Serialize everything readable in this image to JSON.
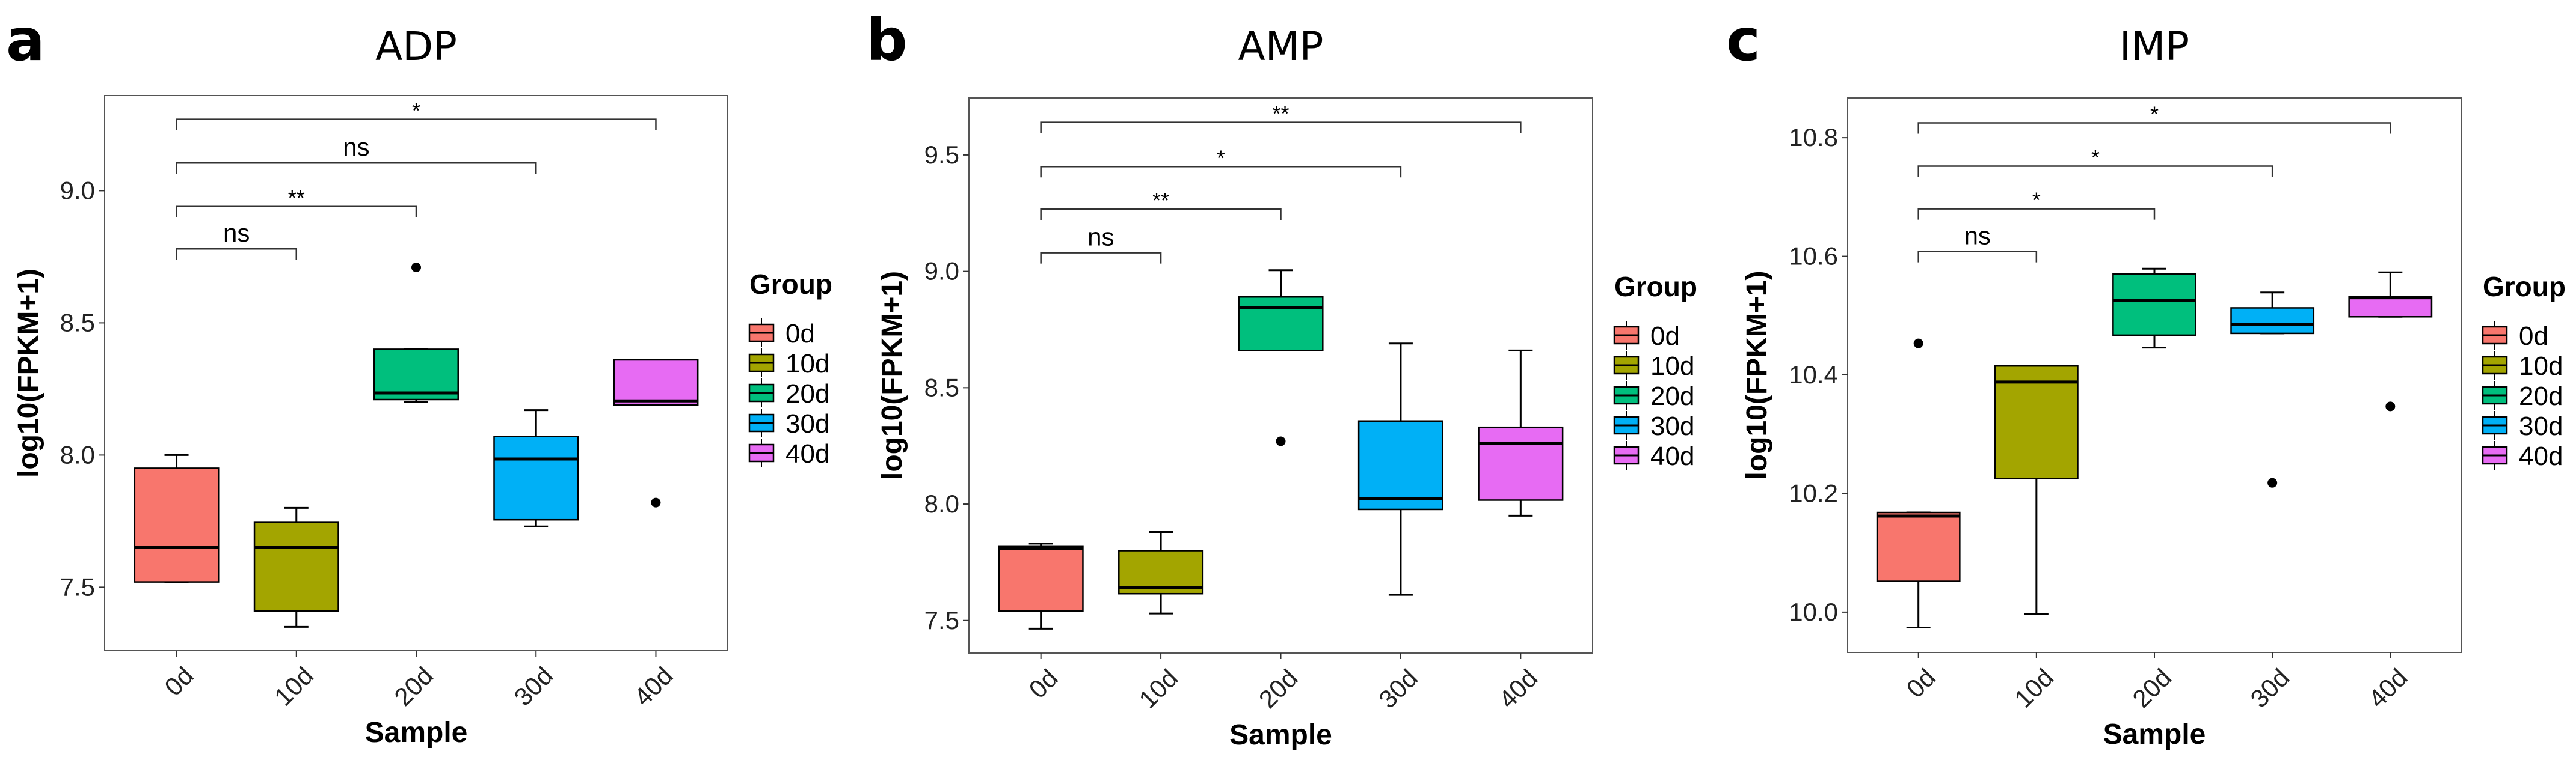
{
  "chart_data": [
    {
      "type": "boxplot",
      "panel_label": "a",
      "title": "ADP",
      "xlabel": "Sample",
      "ylabel": "log10(FPKM+1)",
      "ylim": [
        7.26,
        9.36
      ],
      "yticks": [
        7.5,
        8.0,
        8.5,
        9.0
      ],
      "ytick_labels": [
        "7.5",
        "8.0",
        "8.5",
        "9.0"
      ],
      "categories": [
        "0d",
        "10d",
        "20d",
        "30d",
        "40d"
      ],
      "boxes": [
        {
          "group": "0d",
          "low": 7.52,
          "q1": 7.52,
          "median": 7.65,
          "q3": 7.95,
          "high": 8.0,
          "outliers": []
        },
        {
          "group": "10d",
          "low": 7.35,
          "q1": 7.41,
          "median": 7.65,
          "q3": 7.745,
          "high": 7.8,
          "outliers": []
        },
        {
          "group": "20d",
          "low": 8.2,
          "q1": 8.21,
          "median": 8.235,
          "q3": 8.4,
          "high": 8.4,
          "outliers": [
            8.71
          ]
        },
        {
          "group": "30d",
          "low": 7.73,
          "q1": 7.755,
          "median": 7.985,
          "q3": 8.07,
          "high": 8.17,
          "outliers": []
        },
        {
          "group": "40d",
          "low": 8.19,
          "q1": 8.19,
          "median": 8.205,
          "q3": 8.36,
          "high": 8.36,
          "outliers": [
            7.82
          ]
        }
      ],
      "comparisons": [
        {
          "from": "0d",
          "to": "10d",
          "y": 8.78,
          "label": "ns"
        },
        {
          "from": "0d",
          "to": "20d",
          "y": 8.94,
          "label": "**"
        },
        {
          "from": "0d",
          "to": "30d",
          "y": 9.105,
          "label": "ns"
        },
        {
          "from": "0d",
          "to": "40d",
          "y": 9.27,
          "label": "*"
        }
      ],
      "legend": {
        "title": "Group",
        "placement": "right"
      }
    },
    {
      "type": "boxplot",
      "panel_label": "b",
      "title": "AMP",
      "xlabel": "Sample",
      "ylabel": "log10(FPKM+1)",
      "ylim": [
        7.36,
        9.745
      ],
      "yticks": [
        7.5,
        8.0,
        8.5,
        9.0,
        9.5
      ],
      "ytick_labels": [
        "7.5",
        "8.0",
        "8.5",
        "9.0",
        "9.5"
      ],
      "categories": [
        "0d",
        "10d",
        "20d",
        "30d",
        "40d"
      ],
      "boxes": [
        {
          "group": "0d",
          "low": 7.465,
          "q1": 7.54,
          "median": 7.81,
          "q3": 7.82,
          "high": 7.83,
          "outliers": []
        },
        {
          "group": "10d",
          "low": 7.53,
          "q1": 7.615,
          "median": 7.64,
          "q3": 7.8,
          "high": 7.88,
          "outliers": []
        },
        {
          "group": "20d",
          "low": 8.66,
          "q1": 8.66,
          "median": 8.845,
          "q3": 8.89,
          "high": 9.005,
          "outliers": [
            8.27
          ]
        },
        {
          "group": "30d",
          "low": 7.61,
          "q1": 7.977,
          "median": 8.023,
          "q3": 8.357,
          "high": 8.69,
          "outliers": []
        },
        {
          "group": "40d",
          "low": 7.95,
          "q1": 8.017,
          "median": 8.26,
          "q3": 8.33,
          "high": 8.66,
          "outliers": []
        }
      ],
      "comparisons": [
        {
          "from": "0d",
          "to": "10d",
          "y": 9.08,
          "label": "ns"
        },
        {
          "from": "0d",
          "to": "20d",
          "y": 9.267,
          "label": "**"
        },
        {
          "from": "0d",
          "to": "30d",
          "y": 9.45,
          "label": "*"
        },
        {
          "from": "0d",
          "to": "40d",
          "y": 9.64,
          "label": "**"
        }
      ],
      "legend": {
        "title": "Group",
        "placement": "right"
      }
    },
    {
      "type": "boxplot",
      "panel_label": "c",
      "title": "IMP",
      "xlabel": "Sample",
      "ylabel": "log10(FPKM+1)",
      "ylim": [
        9.932,
        10.867
      ],
      "yticks": [
        10.0,
        10.2,
        10.4,
        10.6,
        10.8
      ],
      "ytick_labels": [
        "10.0",
        "10.2",
        "10.4",
        "10.6",
        "10.8"
      ],
      "categories": [
        "0d",
        "10d",
        "20d",
        "30d",
        "40d"
      ],
      "boxes": [
        {
          "group": "0d",
          "low": 9.974,
          "q1": 10.052,
          "median": 10.162,
          "q3": 10.168,
          "high": 10.168,
          "outliers": [
            10.453
          ]
        },
        {
          "group": "10d",
          "low": 9.997,
          "q1": 10.225,
          "median": 10.388,
          "q3": 10.415,
          "high": 10.415,
          "outliers": []
        },
        {
          "group": "20d",
          "low": 10.446,
          "q1": 10.467,
          "median": 10.526,
          "q3": 10.57,
          "high": 10.579,
          "outliers": []
        },
        {
          "group": "30d",
          "low": 10.47,
          "q1": 10.47,
          "median": 10.485,
          "q3": 10.513,
          "high": 10.539,
          "outliers": [
            10.218
          ]
        },
        {
          "group": "40d",
          "low": 10.498,
          "q1": 10.498,
          "median": 10.53,
          "q3": 10.532,
          "high": 10.573,
          "outliers": [
            10.347
          ]
        }
      ],
      "comparisons": [
        {
          "from": "0d",
          "to": "10d",
          "y": 10.608,
          "label": "ns"
        },
        {
          "from": "0d",
          "to": "20d",
          "y": 10.68,
          "label": "*"
        },
        {
          "from": "0d",
          "to": "30d",
          "y": 10.752,
          "label": "*"
        },
        {
          "from": "0d",
          "to": "40d",
          "y": 10.825,
          "label": "*"
        }
      ],
      "legend": {
        "title": "Group",
        "placement": "right"
      }
    }
  ],
  "group_colors": {
    "0d": "#F8766D",
    "10d": "#A3A500",
    "20d": "#00BF7D",
    "30d": "#00B0F6",
    "40d": "#E76BF3"
  }
}
